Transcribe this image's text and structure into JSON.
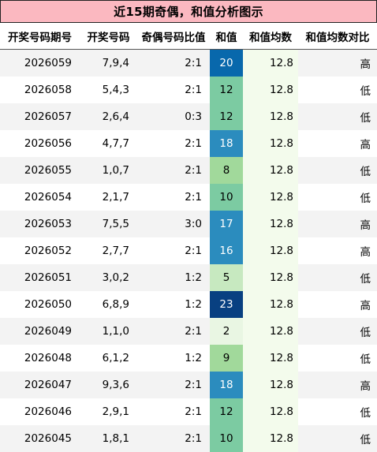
{
  "title": "近15期奇偶，和值分析图示",
  "headers": [
    "开奖号码期号",
    "开奖号码",
    "奇偶号码比值",
    "和值",
    "和值均数",
    "和值均数对比"
  ],
  "rows": [
    {
      "issue": "2026059",
      "numbers": "7,9,4",
      "ratio": "2:1",
      "sum": "20",
      "avg": "12.8",
      "cmp": "高"
    },
    {
      "issue": "2026058",
      "numbers": "5,4,3",
      "ratio": "2:1",
      "sum": "12",
      "avg": "12.8",
      "cmp": "低"
    },
    {
      "issue": "2026057",
      "numbers": "2,6,4",
      "ratio": "0:3",
      "sum": "12",
      "avg": "12.8",
      "cmp": "低"
    },
    {
      "issue": "2026056",
      "numbers": "4,7,7",
      "ratio": "2:1",
      "sum": "18",
      "avg": "12.8",
      "cmp": "高"
    },
    {
      "issue": "2026055",
      "numbers": "1,0,7",
      "ratio": "2:1",
      "sum": "8",
      "avg": "12.8",
      "cmp": "低"
    },
    {
      "issue": "2026054",
      "numbers": "2,1,7",
      "ratio": "2:1",
      "sum": "10",
      "avg": "12.8",
      "cmp": "低"
    },
    {
      "issue": "2026053",
      "numbers": "7,5,5",
      "ratio": "3:0",
      "sum": "17",
      "avg": "12.8",
      "cmp": "高"
    },
    {
      "issue": "2026052",
      "numbers": "2,7,7",
      "ratio": "2:1",
      "sum": "16",
      "avg": "12.8",
      "cmp": "高"
    },
    {
      "issue": "2026051",
      "numbers": "3,0,2",
      "ratio": "1:2",
      "sum": "5",
      "avg": "12.8",
      "cmp": "低"
    },
    {
      "issue": "2026050",
      "numbers": "6,8,9",
      "ratio": "1:2",
      "sum": "23",
      "avg": "12.8",
      "cmp": "高"
    },
    {
      "issue": "2026049",
      "numbers": "1,1,0",
      "ratio": "2:1",
      "sum": "2",
      "avg": "12.8",
      "cmp": "低"
    },
    {
      "issue": "2026048",
      "numbers": "6,1,2",
      "ratio": "1:2",
      "sum": "9",
      "avg": "12.8",
      "cmp": "低"
    },
    {
      "issue": "2026047",
      "numbers": "9,3,6",
      "ratio": "2:1",
      "sum": "18",
      "avg": "12.8",
      "cmp": "高"
    },
    {
      "issue": "2026046",
      "numbers": "2,9,1",
      "ratio": "2:1",
      "sum": "12",
      "avg": "12.8",
      "cmp": "低"
    },
    {
      "issue": "2026045",
      "numbers": "1,8,1",
      "ratio": "2:1",
      "sum": "10",
      "avg": "12.8",
      "cmp": "低"
    }
  ],
  "colors": {
    "title_bg": "#fbb8c0",
    "avg_bg": "#f3fbec",
    "row_alt_bg": "#f3f3f3",
    "sum_scale": [
      "#e9f6e3",
      "#c7e9c0",
      "#a1d99b",
      "#7ccba2",
      "#4eb3d3",
      "#2b8cbe",
      "#0868ac",
      "#084081"
    ]
  }
}
